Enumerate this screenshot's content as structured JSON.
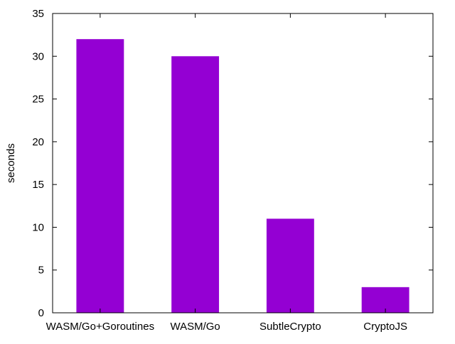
{
  "chart_data": {
    "type": "bar",
    "categories": [
      "WASM/Go+Goroutines",
      "WASM/Go",
      "SubtleCrypto",
      "CryptoJS"
    ],
    "values": [
      32,
      30,
      11,
      3
    ],
    "title": "",
    "xlabel": "",
    "ylabel": "seconds",
    "ylim": [
      0,
      35
    ],
    "yticks": [
      0,
      5,
      10,
      15,
      20,
      25,
      30,
      35
    ],
    "grid": false,
    "legend": "none",
    "bar_color": "#9400d3",
    "frame_color": "#000000"
  }
}
